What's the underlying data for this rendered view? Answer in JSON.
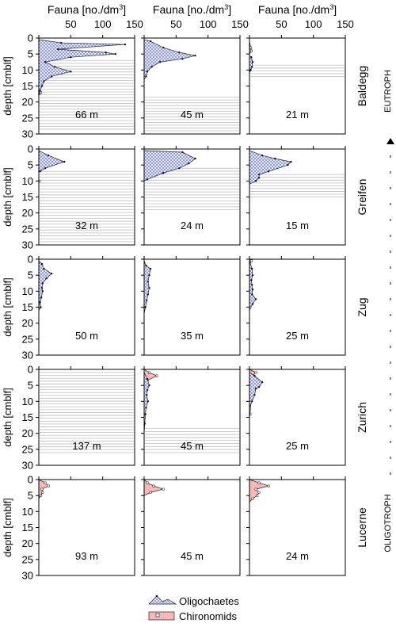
{
  "chart_data": {
    "type": "area",
    "description": "Small-multiple depth profiles of sediment fauna (Oligochaetes, Chironomids) per lake and water depth",
    "x_axis": {
      "label_main": "Fauna [no./dm",
      "label_sup": "3",
      "label_end": "]",
      "range": [
        0,
        150
      ],
      "ticks": [
        "0",
        "50",
        "100",
        "150"
      ]
    },
    "y_axis": {
      "label": "depth [cmblf]",
      "range": [
        0,
        30
      ],
      "ticks": [
        "0",
        "5",
        "10",
        "15",
        "20",
        "25",
        "30"
      ],
      "inverted": true
    },
    "trophic_scale": {
      "top": "EUTROPH",
      "bottom": "OLIGOTROPH"
    },
    "legend": [
      {
        "name": "Oligochaetes",
        "color": "#7b86e0",
        "hatch": true,
        "marker": "dot"
      },
      {
        "name": "Chironomids",
        "color": "#f6b8b8",
        "hatch": false,
        "marker": "square"
      }
    ],
    "colors": {
      "oligo_fill": "#7b86e0",
      "chiro_fill": "#f6b8b8",
      "laminae": "#bdbdbd"
    },
    "lakes": [
      {
        "name": "Baldegg",
        "cores": [
          {
            "depth": "66 m",
            "laminated_from": 7,
            "laminated_to": 28.5,
            "oligo": [
              [
                0,
                0.5
              ],
              [
                35,
                1.5
              ],
              [
                135,
                2
              ],
              [
                30,
                3.5
              ],
              [
                105,
                4.5
              ],
              [
                120,
                5
              ],
              [
                50,
                6
              ],
              [
                10,
                7.5
              ],
              [
                25,
                9
              ],
              [
                50,
                10.5
              ],
              [
                20,
                12
              ],
              [
                8,
                13.5
              ],
              [
                5,
                15
              ],
              [
                2,
                16.5
              ],
              [
                0,
                18
              ]
            ],
            "chiro": [
              [
                1,
                16.5
              ],
              [
                3,
                17
              ],
              [
                1,
                17.5
              ],
              [
                0,
                18
              ]
            ]
          },
          {
            "depth": "45 m",
            "laminated_from": 18.5,
            "laminated_to": 29,
            "oligo": [
              [
                0,
                0.5
              ],
              [
                10,
                1
              ],
              [
                30,
                3
              ],
              [
                55,
                4.5
              ],
              [
                80,
                5.5
              ],
              [
                60,
                6.5
              ],
              [
                25,
                7.5
              ],
              [
                12,
                9
              ],
              [
                5,
                10.5
              ],
              [
                3,
                12
              ],
              [
                0,
                13
              ]
            ],
            "chiro": []
          },
          {
            "depth": "21 m",
            "laminated_from": 8.5,
            "laminated_to": 12,
            "oligo": [
              [
                0,
                5.5
              ],
              [
                3,
                6
              ],
              [
                5,
                7.5
              ],
              [
                4,
                9
              ],
              [
                2,
                10
              ],
              [
                0,
                11
              ]
            ],
            "chiro": [
              [
                0,
                1
              ],
              [
                2,
                3
              ],
              [
                3,
                4
              ],
              [
                0,
                5
              ]
            ]
          }
        ]
      },
      {
        "name": "Greifen",
        "cores": [
          {
            "depth": "32 m",
            "laminated_from": 7,
            "laminated_to": 29,
            "oligo": [
              [
                0,
                0.5
              ],
              [
                15,
                2
              ],
              [
                40,
                4
              ],
              [
                10,
                6
              ],
              [
                2,
                7
              ]
            ],
            "chiro": [
              [
                1,
                10
              ],
              [
                0,
                11
              ]
            ]
          },
          {
            "depth": "24 m",
            "laminated_from": 6,
            "laminated_to": 19,
            "oligo": [
              [
                0,
                0.5
              ],
              [
                60,
                1
              ],
              [
                80,
                3
              ],
              [
                70,
                4.5
              ],
              [
                55,
                6
              ],
              [
                30,
                7.5
              ],
              [
                5,
                9.5
              ],
              [
                0,
                10
              ]
            ],
            "chiro": []
          },
          {
            "depth": "15 m",
            "laminated_from": 8,
            "laminated_to": 15,
            "oligo": [
              [
                0,
                0.5
              ],
              [
                20,
                2
              ],
              [
                40,
                3
              ],
              [
                65,
                4
              ],
              [
                60,
                5
              ],
              [
                30,
                7
              ],
              [
                15,
                8
              ],
              [
                15,
                9
              ],
              [
                10,
                10
              ],
              [
                0,
                11
              ]
            ],
            "chiro": []
          }
        ]
      },
      {
        "name": "Zug",
        "cores": [
          {
            "depth": "50 m",
            "laminated_from": null,
            "laminated_to": null,
            "oligo": [
              [
                0,
                0.5
              ],
              [
                5,
                1.5
              ],
              [
                8,
                3
              ],
              [
                20,
                4.5
              ],
              [
                12,
                6
              ],
              [
                6,
                7.5
              ],
              [
                5,
                9
              ],
              [
                6,
                10
              ],
              [
                4,
                12
              ],
              [
                2,
                13.5
              ],
              [
                3,
                15
              ],
              [
                0,
                16
              ]
            ],
            "chiro": []
          },
          {
            "depth": "35 m",
            "laminated_from": null,
            "laminated_to": null,
            "oligo": [
              [
                0,
                0.5
              ],
              [
                3,
                2
              ],
              [
                10,
                3
              ],
              [
                8,
                5
              ],
              [
                6,
                7
              ],
              [
                8,
                9
              ],
              [
                6,
                11
              ],
              [
                4,
                13
              ],
              [
                2,
                15
              ],
              [
                0,
                17
              ],
              [
                0,
                21
              ]
            ],
            "chiro": []
          },
          {
            "depth": "25 m",
            "laminated_from": null,
            "laminated_to": null,
            "oligo": [
              [
                0,
                0.5
              ],
              [
                4,
                3
              ],
              [
                5,
                5
              ],
              [
                3,
                6.5
              ],
              [
                4,
                8
              ],
              [
                5,
                9.5
              ],
              [
                4,
                11
              ],
              [
                10,
                12.5
              ],
              [
                5,
                14
              ],
              [
                0,
                16
              ]
            ],
            "chiro": [
              [
                3,
                0.5
              ],
              [
                0,
                2
              ]
            ]
          }
        ]
      },
      {
        "name": "Zurich",
        "cores": [
          {
            "depth": "137 m",
            "laminated_from": 1,
            "laminated_to": 26,
            "oligo": [],
            "chiro": []
          },
          {
            "depth": "45 m",
            "laminated_from": 18.5,
            "laminated_to": 26,
            "oligo": [
              [
                0,
                1
              ],
              [
                5,
                3
              ],
              [
                8,
                5
              ],
              [
                5,
                6.5
              ],
              [
                4,
                8
              ],
              [
                6,
                10
              ],
              [
                3,
                12
              ],
              [
                2,
                14
              ],
              [
                1,
                17
              ],
              [
                0,
                20
              ]
            ],
            "chiro": [
              [
                0,
                0
              ],
              [
                8,
                1
              ],
              [
                20,
                2
              ],
              [
                5,
                3.5
              ],
              [
                2,
                5
              ],
              [
                0,
                7
              ]
            ]
          },
          {
            "depth": "25 m",
            "laminated_from": null,
            "laminated_to": null,
            "oligo": [
              [
                0,
                1
              ],
              [
                8,
                2
              ],
              [
                20,
                4
              ],
              [
                15,
                5.5
              ],
              [
                10,
                6
              ],
              [
                8,
                8
              ],
              [
                4,
                10
              ],
              [
                0,
                12
              ]
            ],
            "chiro": [
              [
                0,
                0
              ],
              [
                10,
                1
              ],
              [
                5,
                2
              ],
              [
                8,
                4
              ],
              [
                6,
                6
              ],
              [
                3,
                8
              ],
              [
                1,
                14
              ],
              [
                0,
                15
              ]
            ]
          }
        ]
      },
      {
        "name": "Lucerne",
        "cores": [
          {
            "depth": "93 m",
            "laminated_from": null,
            "laminated_to": null,
            "oligo": [],
            "chiro": [
              [
                0,
                0
              ],
              [
                10,
                1
              ],
              [
                15,
                2
              ],
              [
                5,
                3
              ],
              [
                6,
                4
              ],
              [
                3,
                5
              ],
              [
                0,
                6
              ]
            ]
          },
          {
            "depth": "45 m",
            "laminated_from": null,
            "laminated_to": null,
            "oligo": [],
            "chiro": [
              [
                0,
                0
              ],
              [
                5,
                1
              ],
              [
                15,
                2
              ],
              [
                30,
                3
              ],
              [
                10,
                4
              ],
              [
                0,
                5
              ]
            ]
          },
          {
            "depth": "24 m",
            "laminated_from": null,
            "laminated_to": null,
            "oligo": [],
            "chiro": [
              [
                0,
                0
              ],
              [
                15,
                1
              ],
              [
                30,
                2
              ],
              [
                10,
                3
              ],
              [
                15,
                4
              ],
              [
                12,
                5
              ],
              [
                5,
                6
              ],
              [
                0,
                7
              ]
            ]
          }
        ]
      }
    ]
  }
}
